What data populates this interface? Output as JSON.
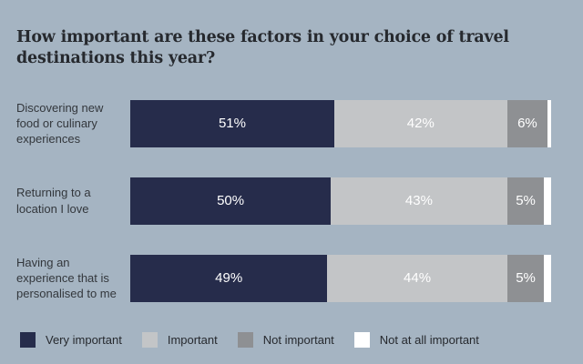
{
  "title": "How important are these factors in your choice of travel destinations this year?",
  "colors": {
    "background": "#a5b4c2",
    "title_text": "#26292e",
    "category_label_text": "#33373c",
    "bar_value_text": "#ffffff",
    "very_important": "#262c4b",
    "important": "#c3c5c7",
    "not_important": "#8e9093",
    "not_at_all_important": "#ffffff"
  },
  "chart_data": {
    "type": "bar",
    "orientation": "horizontal",
    "stacked": true,
    "title": "How important are these factors in your choice of travel destinations this year?",
    "categories": [
      "Discovering new food or culinary experiences",
      "Returning to a location I love",
      "Having an experience that is personalised to me"
    ],
    "series": [
      {
        "name": "Very important",
        "color": "#262c4b",
        "values": [
          51,
          50,
          49
        ]
      },
      {
        "name": "Important",
        "color": "#c3c5c7",
        "values": [
          42,
          43,
          44
        ]
      },
      {
        "name": "Not important",
        "color": "#8e9093",
        "values": [
          6,
          5,
          5
        ]
      },
      {
        "name": "Not at all important",
        "color": "#ffffff",
        "values": [
          1,
          2,
          2
        ],
        "note": "unlabeled thin white segment; values estimated as remainder to 100"
      }
    ],
    "value_format": "percent",
    "xlim": [
      0,
      100
    ],
    "grid": false,
    "data_labels": true,
    "legend_position": "bottom"
  },
  "rows": [
    {
      "label": "Discovering new food or culinary experiences",
      "segments": [
        {
          "display": "51%",
          "value": 51
        },
        {
          "display": "42%",
          "value": 42
        },
        {
          "display": "6%",
          "value": 6
        },
        {
          "display": "",
          "value": 1
        }
      ]
    },
    {
      "label": "Returning to a location I love",
      "segments": [
        {
          "display": "50%",
          "value": 50
        },
        {
          "display": "43%",
          "value": 43
        },
        {
          "display": "5%",
          "value": 5
        },
        {
          "display": "",
          "value": 2
        }
      ]
    },
    {
      "label": "Having an experience that is personalised to me",
      "segments": [
        {
          "display": "49%",
          "value": 49
        },
        {
          "display": "44%",
          "value": 44
        },
        {
          "display": "5%",
          "value": 5
        },
        {
          "display": "",
          "value": 2
        }
      ]
    }
  ],
  "legend": {
    "items": [
      {
        "label": "Very important",
        "color": "#262c4b"
      },
      {
        "label": "Important",
        "color": "#c3c5c7"
      },
      {
        "label": "Not important",
        "color": "#8e9093"
      },
      {
        "label": "Not at all important",
        "color": "#ffffff"
      }
    ]
  }
}
